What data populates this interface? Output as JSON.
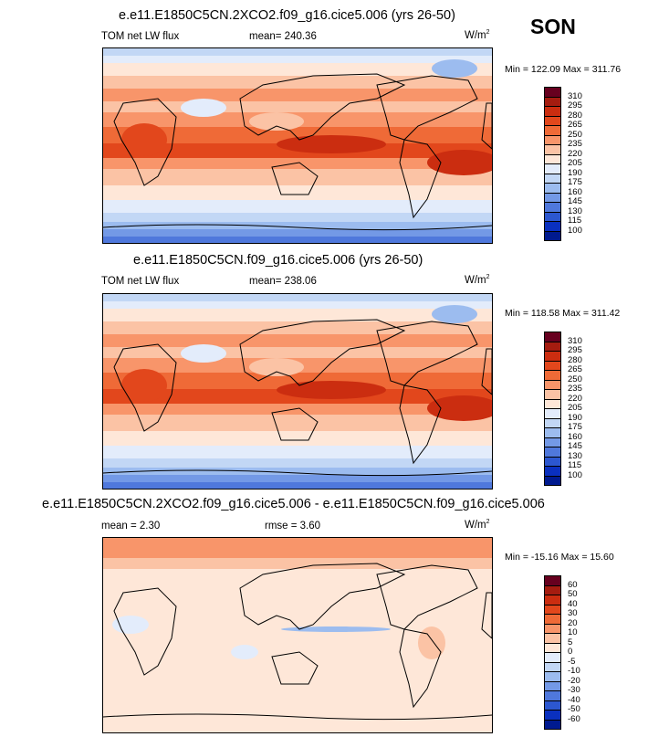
{
  "season": "SON",
  "panels": [
    {
      "title": "e.e11.E1850C5CN.2XCO2.f09_g16.cice5.006 (yrs 26-50)",
      "left_label": "TOM net LW flux",
      "center_label": "mean= 240.36",
      "units": "W/m",
      "units_sup": "2",
      "minmax": "Min = 122.09 Max = 311.76",
      "colorbar_labels": [
        "310",
        "295",
        "280",
        "265",
        "250",
        "235",
        "220",
        "205",
        "190",
        "175",
        "160",
        "145",
        "130",
        "115",
        "100"
      ]
    },
    {
      "title": "e.e11.E1850C5CN.f09_g16.cice5.006 (yrs 26-50)",
      "left_label": "TOM net LW flux",
      "center_label": "mean= 238.06",
      "units": "W/m",
      "units_sup": "2",
      "minmax": "Min = 118.58 Max = 311.42",
      "colorbar_labels": [
        "310",
        "295",
        "280",
        "265",
        "250",
        "235",
        "220",
        "205",
        "190",
        "175",
        "160",
        "145",
        "130",
        "115",
        "100"
      ]
    },
    {
      "title": "e.e11.E1850C5CN.2XCO2.f09_g16.cice5.006 - e.e11.E1850C5CN.f09_g16.cice5.006",
      "left_label": "mean =   2.30",
      "center_label": "rmse =   3.60",
      "units": "W/m",
      "units_sup": "2",
      "minmax": "Min = -15.16 Max =  15.60",
      "colorbar_labels": [
        "60",
        "50",
        "40",
        "30",
        "20",
        "10",
        "5",
        "0",
        "-5",
        "-10",
        "-20",
        "-30",
        "-40",
        "-50",
        "-60"
      ]
    }
  ],
  "chart_data": [
    {
      "type": "heatmap",
      "title": "e.e11.E1850C5CN.2XCO2.f09_g16.cice5.006 (yrs 26-50)",
      "variable": "TOM net LW flux",
      "units": "W/m2",
      "mean": 240.36,
      "min": 122.09,
      "max": 311.76,
      "levels": [
        100,
        115,
        130,
        145,
        160,
        175,
        190,
        205,
        220,
        235,
        250,
        265,
        280,
        295,
        310
      ]
    },
    {
      "type": "heatmap",
      "title": "e.e11.E1850C5CN.f09_g16.cice5.006 (yrs 26-50)",
      "variable": "TOM net LW flux",
      "units": "W/m2",
      "mean": 238.06,
      "min": 118.58,
      "max": 311.42,
      "levels": [
        100,
        115,
        130,
        145,
        160,
        175,
        190,
        205,
        220,
        235,
        250,
        265,
        280,
        295,
        310
      ]
    },
    {
      "type": "heatmap",
      "title": "e.e11.E1850C5CN.2XCO2.f09_g16.cice5.006 - e.e11.E1850C5CN.f09_g16.cice5.006",
      "units": "W/m2",
      "mean": 2.3,
      "rmse": 3.6,
      "min": -15.16,
      "max": 15.6,
      "levels": [
        -60,
        -50,
        -40,
        -30,
        -20,
        -10,
        -5,
        0,
        5,
        10,
        20,
        30,
        40,
        50,
        60
      ]
    }
  ],
  "colors": {
    "abs_scale": [
      "#67001f",
      "#a51c10",
      "#cb2d10",
      "#e2471c",
      "#ef6a37",
      "#f8956a",
      "#fbc3a5",
      "#fee7d8",
      "#e3ecfb",
      "#c2d7f5",
      "#9cbcef",
      "#7399e6",
      "#4f78dc",
      "#2c57d0",
      "#0a30bf",
      "#001a8f"
    ],
    "diff_scale": [
      "#67001f",
      "#a51c10",
      "#cb2d10",
      "#e2471c",
      "#ef6a37",
      "#f8956a",
      "#fbc3a5",
      "#fee7d8",
      "#e3ecfb",
      "#c2d7f5",
      "#9cbcef",
      "#7399e6",
      "#4f78dc",
      "#2c57d0",
      "#0a30bf",
      "#001a8f"
    ]
  }
}
